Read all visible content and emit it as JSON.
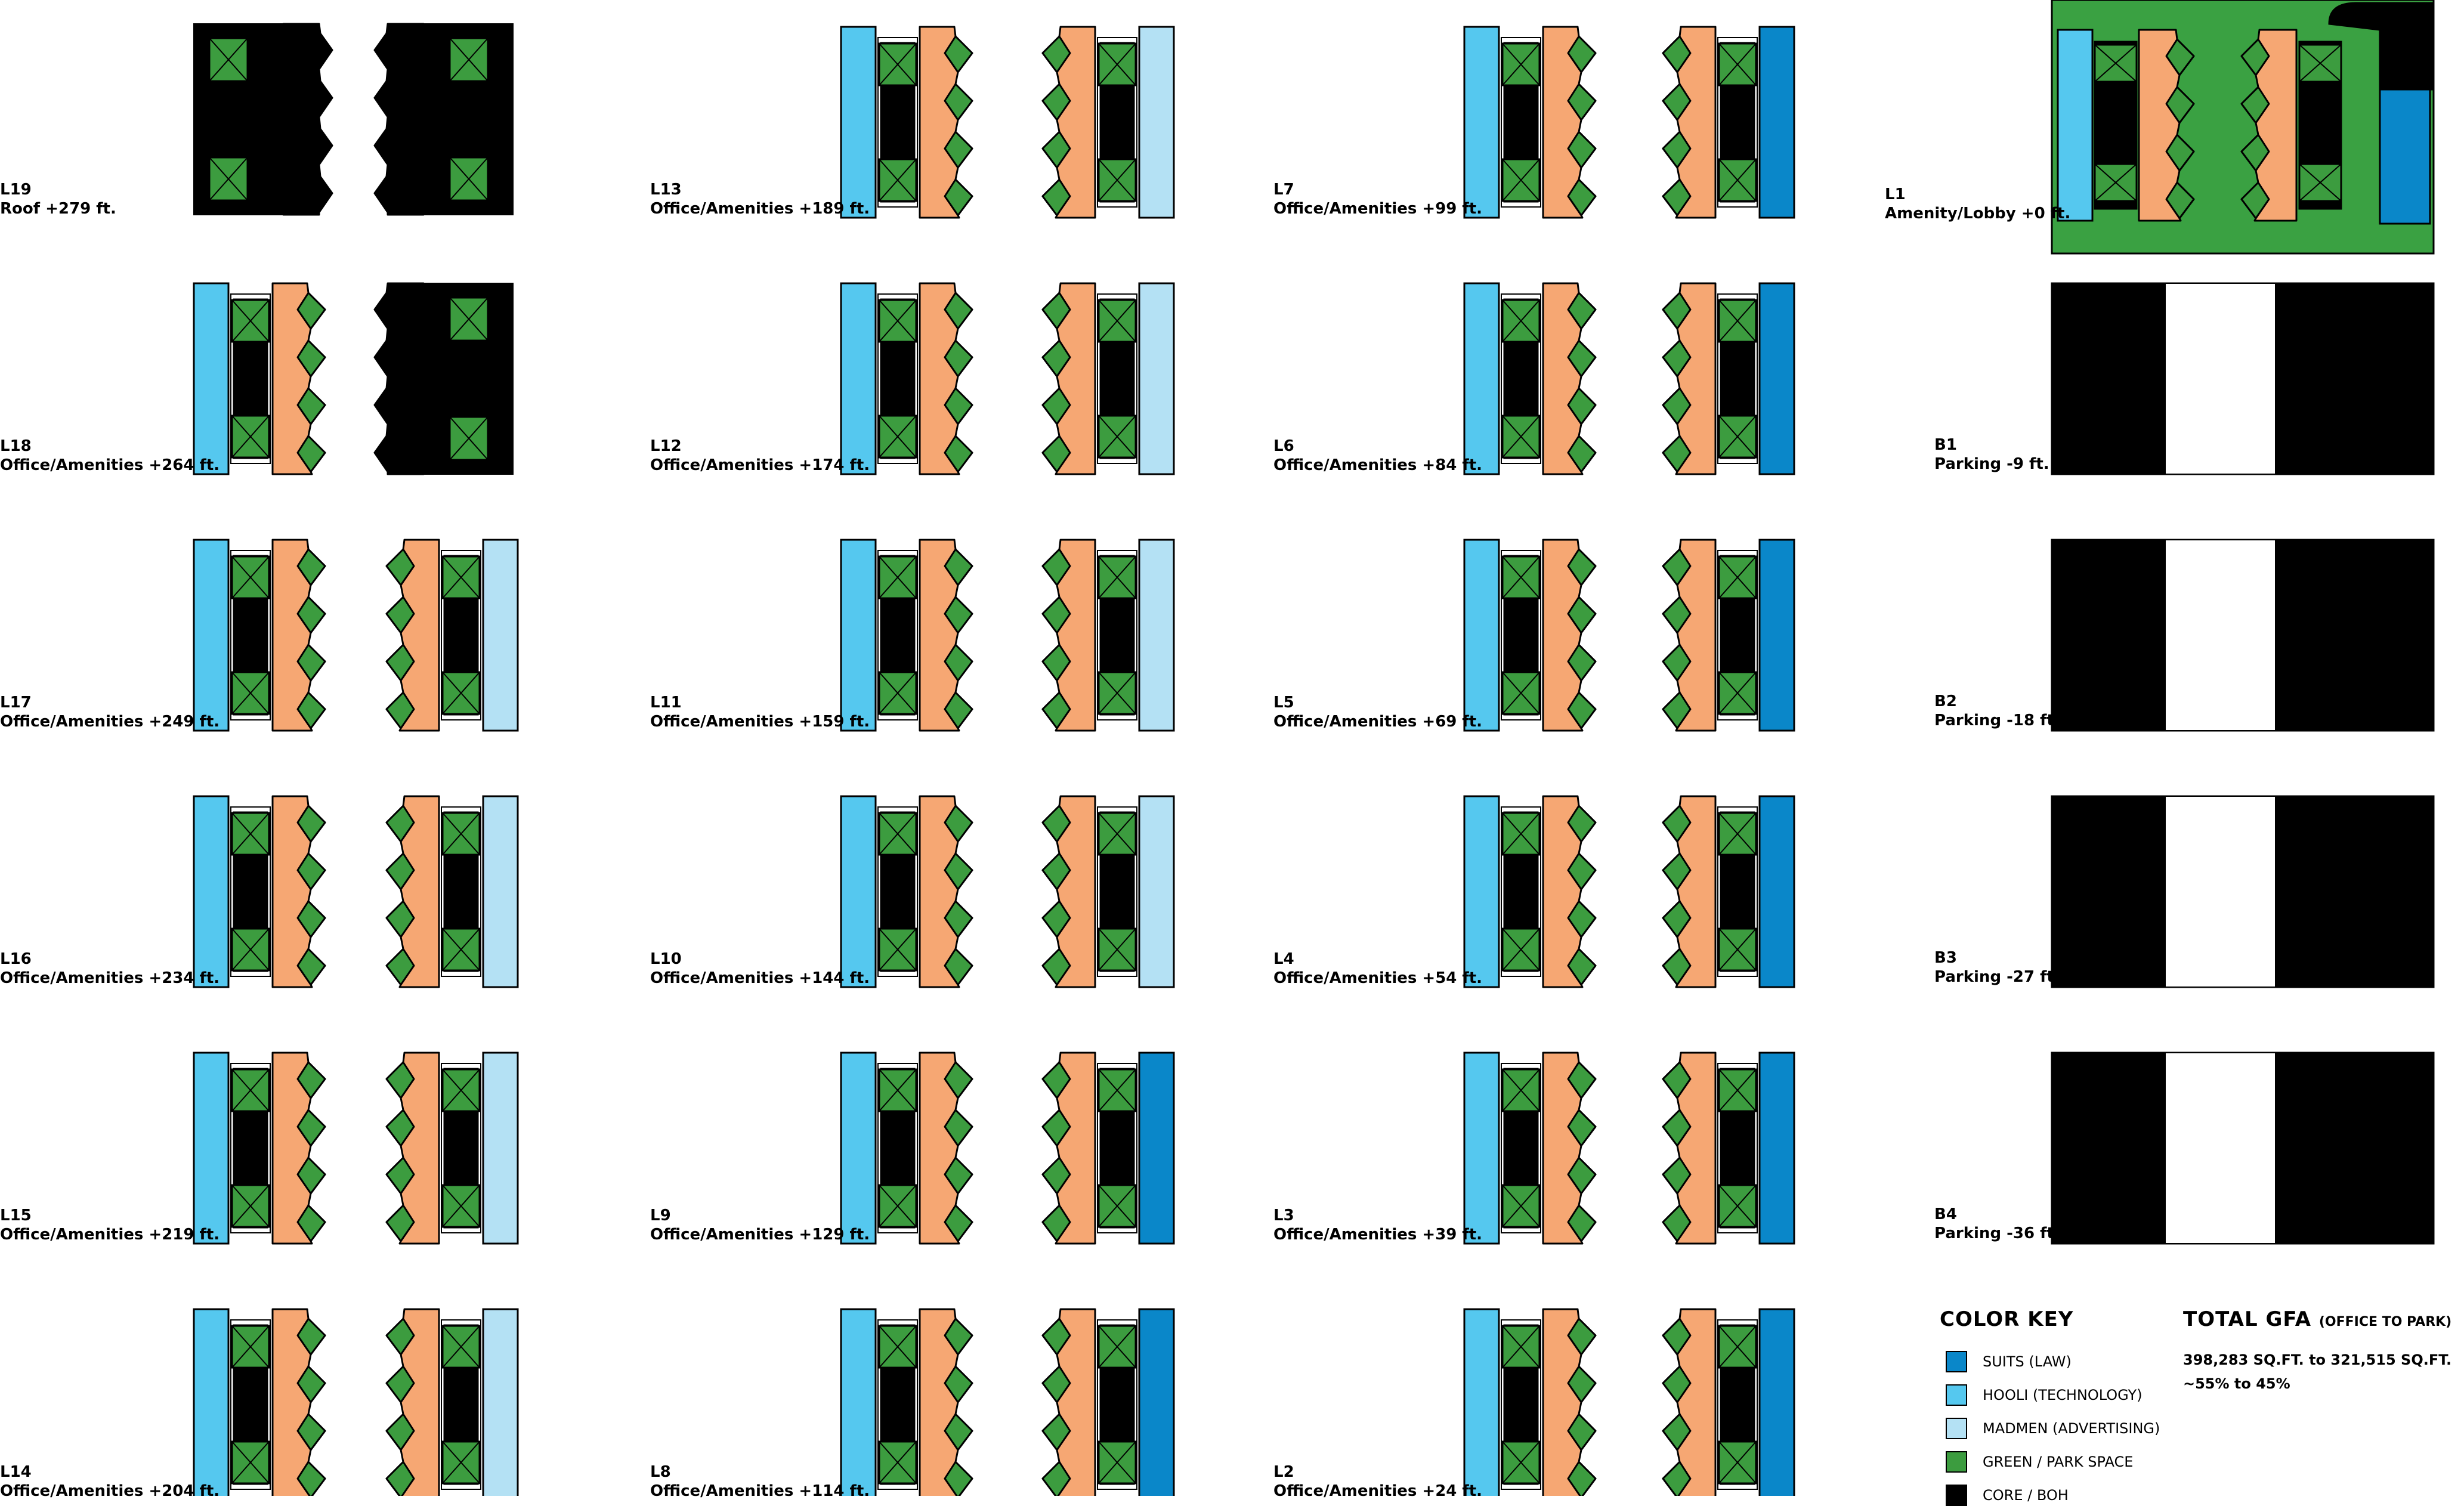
{
  "colors": {
    "suits": "#0a87c9",
    "hooli": "#55c8ef",
    "madmen": "#b4e1f4",
    "green": "#3c9c3f",
    "green_dark": "#2f8a34",
    "office": "#f6a773",
    "core": "#000000",
    "park": "#3aa142"
  },
  "floors": [
    {
      "level": "L19",
      "use": "Roof +279 ft.",
      "kind": "roof"
    },
    {
      "level": "L18",
      "use": "Office/Amenities +264 ft.",
      "kind": "half",
      "left_tenant": "hooli"
    },
    {
      "level": "L17",
      "use": "Office/Amenities +249 ft.",
      "kind": "office",
      "left_tenant": "hooli",
      "right_tenant": "madmen"
    },
    {
      "level": "L16",
      "use": "Office/Amenities +234 ft.",
      "kind": "office",
      "left_tenant": "hooli",
      "right_tenant": "madmen"
    },
    {
      "level": "L15",
      "use": "Office/Amenities +219 ft.",
      "kind": "office",
      "left_tenant": "hooli",
      "right_tenant": "madmen"
    },
    {
      "level": "L14",
      "use": "Office/Amenities +204 ft.",
      "kind": "office",
      "left_tenant": "hooli",
      "right_tenant": "madmen"
    },
    {
      "level": "L13",
      "use": "Office/Amenities +189 ft.",
      "kind": "office",
      "left_tenant": "hooli",
      "right_tenant": "madmen"
    },
    {
      "level": "L12",
      "use": "Office/Amenities +174 ft.",
      "kind": "office",
      "left_tenant": "hooli",
      "right_tenant": "madmen"
    },
    {
      "level": "L11",
      "use": "Office/Amenities +159 ft.",
      "kind": "office",
      "left_tenant": "hooli",
      "right_tenant": "madmen"
    },
    {
      "level": "L10",
      "use": "Office/Amenities +144 ft.",
      "kind": "office",
      "left_tenant": "hooli",
      "right_tenant": "madmen"
    },
    {
      "level": "L9",
      "use": "Office/Amenities +129 ft.",
      "kind": "office",
      "left_tenant": "hooli",
      "right_tenant": "suits"
    },
    {
      "level": "L8",
      "use": "Office/Amenities +114 ft.",
      "kind": "office",
      "left_tenant": "hooli",
      "right_tenant": "suits"
    },
    {
      "level": "L7",
      "use": "Office/Amenities +99 ft.",
      "kind": "office",
      "left_tenant": "hooli",
      "right_tenant": "suits"
    },
    {
      "level": "L6",
      "use": "Office/Amenities +84 ft.",
      "kind": "office",
      "left_tenant": "hooli",
      "right_tenant": "suits"
    },
    {
      "level": "L5",
      "use": "Office/Amenities +69 ft.",
      "kind": "office",
      "left_tenant": "hooli",
      "right_tenant": "suits"
    },
    {
      "level": "L4",
      "use": "Office/Amenities +54 ft.",
      "kind": "office",
      "left_tenant": "hooli",
      "right_tenant": "suits"
    },
    {
      "level": "L3",
      "use": "Office/Amenities +39 ft.",
      "kind": "office",
      "left_tenant": "hooli",
      "right_tenant": "suits"
    },
    {
      "level": "L2",
      "use": "Office/Amenities +24 ft.",
      "kind": "office",
      "left_tenant": "hooli",
      "right_tenant": "suits"
    },
    {
      "level": "L1",
      "use": "Amenity/Lobby +0 ft.",
      "kind": "lobby",
      "left_tenant": "hooli",
      "right_tenant": "suits"
    },
    {
      "level": "B1",
      "use": "Parking -9 ft.",
      "kind": "parking"
    },
    {
      "level": "B2",
      "use": "Parking -18 ft.",
      "kind": "parking"
    },
    {
      "level": "B3",
      "use": "Parking -27 ft.",
      "kind": "parking"
    },
    {
      "level": "B4",
      "use": "Parking -36 ft.",
      "kind": "parking"
    }
  ],
  "color_key": {
    "title": "COLOR KEY",
    "items": [
      {
        "label": "SUITS (LAW)",
        "color": "#0a87c9"
      },
      {
        "label": "HOOLI (TECHNOLOGY)",
        "color": "#55c8ef"
      },
      {
        "label": "MADMEN (ADVERTISING)",
        "color": "#b4e1f4"
      },
      {
        "label": "GREEN / PARK SPACE",
        "color": "#3c9c3f"
      },
      {
        "label": "CORE / BOH",
        "color": "#000000"
      }
    ]
  },
  "total_gfa": {
    "title": "TOTAL GFA",
    "subtitle": "(OFFICE TO PARK)",
    "line1": "398,283 SQ.FT. to 321,515 SQ.FT.",
    "line2": "~55% to 45%"
  }
}
